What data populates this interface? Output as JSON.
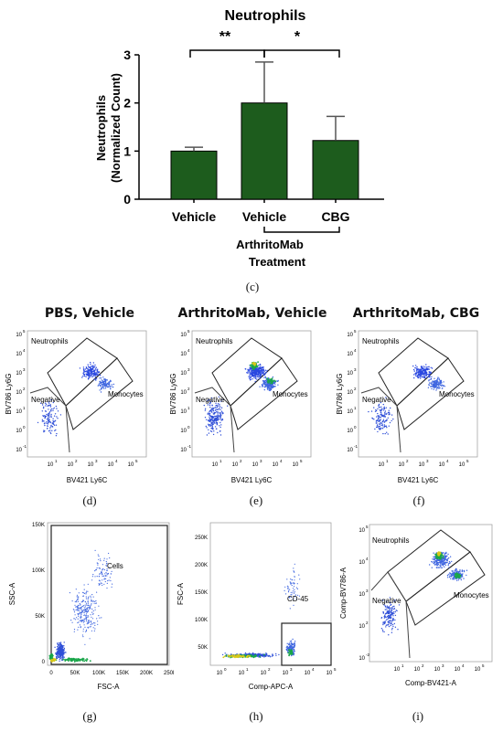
{
  "figure": {
    "captions": {
      "c": "(c)",
      "d": "(d)",
      "e": "(e)",
      "f": "(f)",
      "g": "(g)",
      "h": "(h)",
      "i": "(i)"
    }
  },
  "bar_panel": {
    "bar_color": "#1d5c1d",
    "significance": {
      "left": "**",
      "right": "*"
    },
    "group_label": "ArthritoMab"
  },
  "scatter_panels": {
    "d": {
      "title": "PBS, Vehicle",
      "xlabel": "BV421 Ly6C",
      "ylabel": "BV786 Ly6G",
      "gates": [
        "Neutrophils",
        "Negative",
        "Monocytes"
      ],
      "ticks": [
        "-1",
        "0",
        "1",
        "2",
        "3",
        "4",
        "5"
      ],
      "yticks": [
        "5",
        "4",
        "3",
        "2",
        "1",
        "-1"
      ]
    },
    "e": {
      "title": "ArthritoMab, Vehicle",
      "xlabel": "BV421 Ly6C",
      "ylabel": "BV786 Ly6G",
      "gates": [
        "Neutrophils",
        "Negative",
        "Monocytes"
      ]
    },
    "f": {
      "title": "ArthritoMab, CBG",
      "xlabel": "BV421 Ly6C",
      "ylabel": "BV786 Ly6G",
      "gates": [
        "Neutrophils",
        "Negative",
        "Monocytes"
      ]
    },
    "g": {
      "xlabel": "FSC-A",
      "ylabel": "SSC-A",
      "gate": "Cells",
      "xticks": [
        "0",
        "50K",
        "100K",
        "150K",
        "200K",
        "250K"
      ],
      "yticks": [
        "150K",
        "100K",
        "50K",
        "0"
      ]
    },
    "h": {
      "xlabel": "Comp-APC-A",
      "ylabel": "FSC-A",
      "gate": "CD-45",
      "xticks": [
        "0",
        "1",
        "2",
        "3",
        "4",
        "5"
      ],
      "yticks": [
        "250K",
        "200K",
        "150K",
        "100K",
        "50K"
      ]
    },
    "i": {
      "xlabel": "Comp-BV421-A",
      "ylabel": "Comp-BV786-A",
      "gates": [
        "Neutrophils",
        "Negative",
        "Monocytes"
      ]
    }
  },
  "chart_data": {
    "type": "bar",
    "title": "Neutrophils",
    "xlabel": "Treatment",
    "ylabel": "Neutrophils (Normalized Count)",
    "categories": [
      "Vehicle",
      "Vehicle",
      "CBG"
    ],
    "values": [
      1.0,
      2.0,
      1.22
    ],
    "error": [
      0.08,
      0.85,
      0.5
    ],
    "ylim": [
      0,
      3
    ],
    "yticks": [
      0,
      1,
      2,
      3
    ]
  }
}
